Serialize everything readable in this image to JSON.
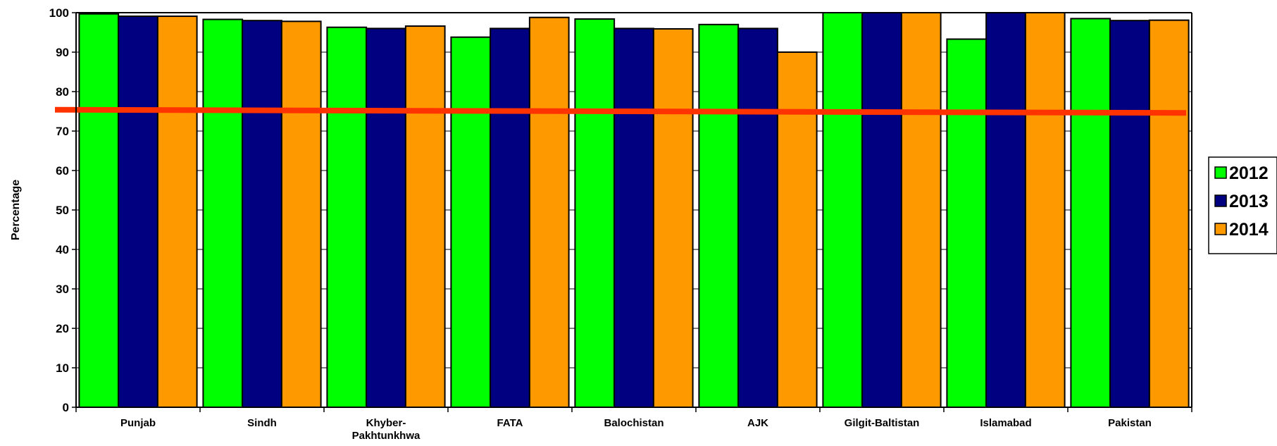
{
  "chart_data": {
    "type": "bar",
    "title": "",
    "xlabel": "",
    "ylabel": "Percentage",
    "ylim": [
      0,
      100
    ],
    "yticks": [
      0,
      10,
      20,
      30,
      40,
      50,
      60,
      70,
      80,
      90,
      100
    ],
    "grid": true,
    "legend_position": "right",
    "categories": [
      "Punjab",
      "Sindh",
      "Khyber-Pakhtunkhwa",
      "FATA",
      "Balochistan",
      "AJK",
      "Gilgit-Baltistan",
      "Islamabad",
      "Pakistan"
    ],
    "category_lines": [
      [
        "Punjab"
      ],
      [
        "Sindh"
      ],
      [
        "Khyber-",
        "Pakhtunkhwa"
      ],
      [
        "FATA"
      ],
      [
        "Balochistan"
      ],
      [
        "AJK"
      ],
      [
        "Gilgit-Baltistan"
      ],
      [
        "Islamabad"
      ],
      [
        "Pakistan"
      ]
    ],
    "series": [
      {
        "name": "2012",
        "color": "#00ff00",
        "values": [
          99.7,
          98.3,
          96.3,
          93.8,
          98.4,
          97.0,
          100,
          93.3,
          98.5
        ]
      },
      {
        "name": "2013",
        "color": "#000080",
        "values": [
          99.1,
          98.0,
          96.0,
          96.0,
          96.0,
          96.0,
          100,
          100,
          98.0
        ]
      },
      {
        "name": "2014",
        "color": "#ff9900",
        "values": [
          99.1,
          97.8,
          96.6,
          98.8,
          95.9,
          90.0,
          100,
          100,
          98.1
        ]
      }
    ],
    "reference_line": {
      "color": "#ff3300",
      "start_value": 75.4,
      "end_value": 74.6
    }
  }
}
